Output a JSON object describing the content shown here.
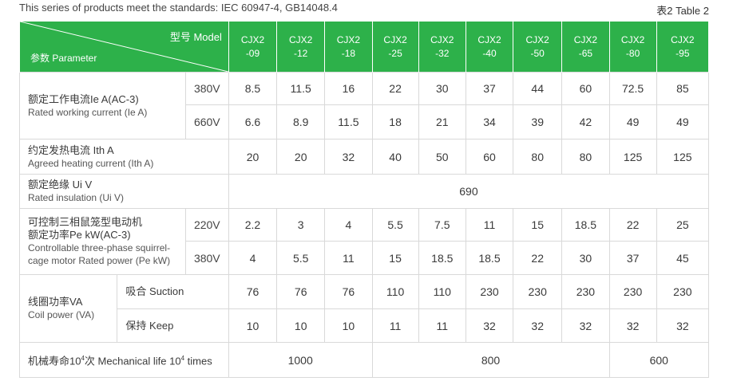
{
  "top_note": "This series of products meet the standards: IEC 60947-4, GB14048.4",
  "table_no": "表2  Table 2",
  "header": {
    "model_label": "型号 Model",
    "param_label": "参数 Parameter",
    "models": [
      [
        "CJX2",
        "-09"
      ],
      [
        "CJX2",
        "-12"
      ],
      [
        "CJX2",
        "-18"
      ],
      [
        "CJX2",
        "-25"
      ],
      [
        "CJX2",
        "-32"
      ],
      [
        "CJX2",
        "-40"
      ],
      [
        "CJX2",
        "-50"
      ],
      [
        "CJX2",
        "-65"
      ],
      [
        "CJX2",
        "-80"
      ],
      [
        "CJX2",
        "-95"
      ]
    ]
  },
  "rated_current": {
    "zh": "额定工作电流Ie A(AC-3)",
    "en": "Rated working current (Ie A)",
    "rows": [
      {
        "voltage": "380V",
        "values": [
          "8.5",
          "11.5",
          "16",
          "22",
          "30",
          "37",
          "44",
          "60",
          "72.5",
          "85"
        ]
      },
      {
        "voltage": "660V",
        "values": [
          "6.6",
          "8.9",
          "11.5",
          "18",
          "21",
          "34",
          "39",
          "42",
          "49",
          "49"
        ]
      }
    ]
  },
  "heating_current": {
    "zh": "约定发热电流 Ith   A",
    "en": "Agreed heating current (Ith A)",
    "values": [
      "20",
      "20",
      "32",
      "40",
      "50",
      "60",
      "80",
      "80",
      "125",
      "125"
    ]
  },
  "insulation": {
    "zh": "额定绝缘 Ui  V",
    "en": "Rated insulation (Ui V)",
    "value": "690"
  },
  "motor_power": {
    "zh1": "可控制三相鼠笼型电动机",
    "zh2": "额定功率Pe kW(AC-3)",
    "en1": "Controllable three-phase squirrel-",
    "en2": "cage motor Rated power (Pe kW)",
    "rows": [
      {
        "voltage": "220V",
        "values": [
          "2.2",
          "3",
          "4",
          "5.5",
          "7.5",
          "11",
          "15",
          "18.5",
          "22",
          "25"
        ]
      },
      {
        "voltage": "380V",
        "values": [
          "4",
          "5.5",
          "11",
          "15",
          "18.5",
          "18.5",
          "22",
          "30",
          "37",
          "45"
        ]
      }
    ]
  },
  "coil_power": {
    "zh": "线圈功率VA",
    "en": "Coil power (VA)",
    "rows": [
      {
        "label": "吸合 Suction",
        "values": [
          "76",
          "76",
          "76",
          "110",
          "110",
          "230",
          "230",
          "230",
          "230",
          "230"
        ]
      },
      {
        "label": "保持 Keep",
        "values": [
          "10",
          "10",
          "10",
          "11",
          "11",
          "32",
          "32",
          "32",
          "32",
          "32"
        ]
      }
    ]
  },
  "mechanical_life": {
    "label_pre": "机械寿命10",
    "label_sup1": "4",
    "label_mid": "次 Mechanical life 10",
    "label_sup2": "4",
    "label_post": " times",
    "values": [
      "1000",
      "800",
      "600"
    ]
  },
  "colors": {
    "header_green": "#2db14a",
    "rule": "#2b2b2b",
    "grid": "#d9d9d9"
  }
}
